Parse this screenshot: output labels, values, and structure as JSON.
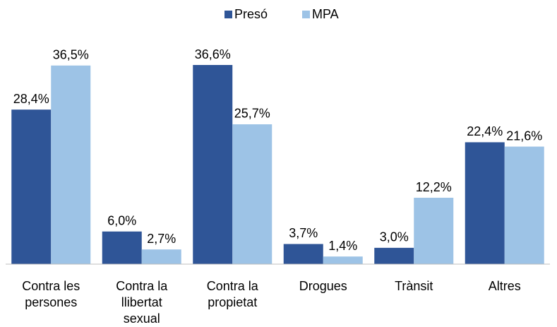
{
  "chart_data": {
    "type": "bar",
    "categories": [
      "Contra les persones",
      "Contra la llibertat sexual",
      "Contra la propietat",
      "Drogues",
      "Trànsit",
      "Altres"
    ],
    "series": [
      {
        "name": "Presó",
        "color": "#2f5597",
        "values": [
          28.4,
          6.0,
          36.6,
          3.7,
          3.0,
          22.4
        ],
        "value_labels": [
          "28,4%",
          "6,0%",
          "36,6%",
          "3,7%",
          "3,0%",
          "22,4%"
        ]
      },
      {
        "name": "MPA",
        "color": "#9dc3e6",
        "values": [
          36.5,
          2.7,
          25.7,
          1.4,
          12.2,
          21.6
        ],
        "value_labels": [
          "36,5%",
          "2,7%",
          "25,7%",
          "1,4%",
          "12,2%",
          "21,6%"
        ]
      }
    ],
    "legend": "top"
  }
}
